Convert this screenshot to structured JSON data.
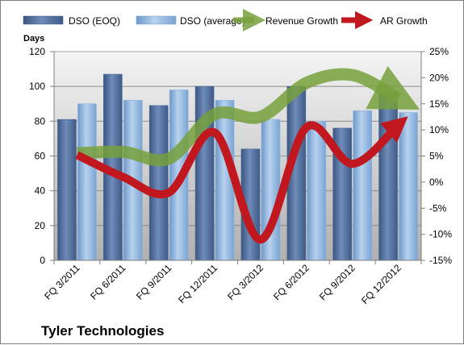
{
  "chart_data": {
    "type": "bar",
    "title": "Tyler Technologies",
    "categories": [
      "FQ 3/2011",
      "FQ 6/2011",
      "FQ 9/2011",
      "FQ 12/2011",
      "FQ 3/2012",
      "FQ 6/2012",
      "FQ 9/2012",
      "FQ 12/2012"
    ],
    "ylabel": "Days",
    "ylim": [
      0,
      120
    ],
    "yticks": [
      "0",
      "20",
      "40",
      "60",
      "80",
      "100",
      "120"
    ],
    "y2lim": [
      -15,
      25
    ],
    "y2ticks": [
      "-15%",
      "-10%",
      "-5%",
      "0%",
      "5%",
      "10%",
      "15%",
      "20%",
      "25%"
    ],
    "series": [
      {
        "name": "DSO (EOQ)",
        "type": "bar",
        "axis": "left",
        "values": [
          81,
          107,
          89,
          100,
          64,
          100,
          76,
          96
        ]
      },
      {
        "name": "DSO (average)",
        "type": "bar",
        "axis": "left",
        "values": [
          90,
          92,
          98,
          92,
          81,
          80,
          86,
          85
        ]
      },
      {
        "name": "Revenue Growth",
        "type": "line",
        "axis": "right",
        "values": [
          5.5,
          5.8,
          4.5,
          13.0,
          12.5,
          19.0,
          20.5,
          16.0
        ]
      },
      {
        "name": "AR Growth",
        "type": "line",
        "axis": "right",
        "values": [
          5.2,
          1.0,
          -2.0,
          9.5,
          -11.0,
          10.5,
          3.5,
          11.0
        ]
      }
    ],
    "grid": true,
    "legend": "top",
    "colors": {
      "dso_eoq": "#4f6d9b",
      "dso_average": "#8db4e2",
      "revenue_growth": "#77a03c",
      "ar_growth": "#c0181e",
      "plot_top": "#f4f4f4",
      "plot_bottom": "#b0b0b0"
    }
  }
}
